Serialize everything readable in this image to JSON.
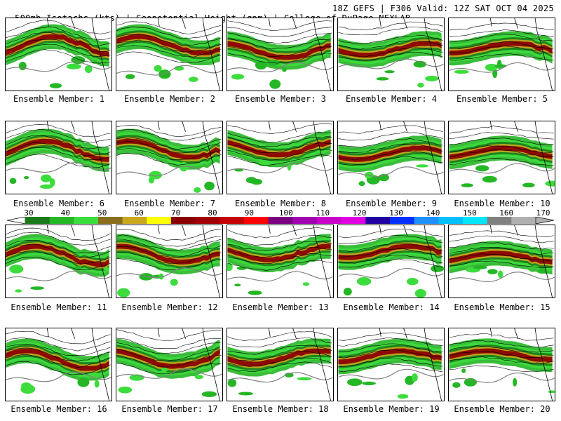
{
  "header": {
    "left_text": "500mb Isotachs (kts) | Geopotential Height (gpm) | College of DuPage NEXLAB",
    "right_text": "18Z GEFS | F306 Valid: 12Z SAT OCT 04 2025"
  },
  "colorbar": {
    "tick_labels": [
      "30",
      "40",
      "50",
      "60",
      "70",
      "80",
      "90",
      "100",
      "110",
      "120",
      "130",
      "140",
      "150",
      "160",
      "170"
    ],
    "colors": [
      "#1a7a1a",
      "#25b625",
      "#3ddc3d",
      "#8a6e1e",
      "#c9a81e",
      "#ffff00",
      "#8b0000",
      "#a00000",
      "#c40000",
      "#ff0000",
      "#7a0080",
      "#a000b0",
      "#c800c8",
      "#e000e0",
      "#2000a0",
      "#0030ff",
      "#1e90ff",
      "#00bfff",
      "#00e5ff",
      "#808080",
      "#b0b0b0"
    ]
  },
  "members": [
    {
      "label": "Ensemble Member: 1"
    },
    {
      "label": "Ensemble Member: 2"
    },
    {
      "label": "Ensemble Member: 3"
    },
    {
      "label": "Ensemble Member: 4"
    },
    {
      "label": "Ensemble Member: 5"
    },
    {
      "label": "Ensemble Member: 6"
    },
    {
      "label": "Ensemble Member: 7"
    },
    {
      "label": "Ensemble Member: 8"
    },
    {
      "label": "Ensemble Member: 9"
    },
    {
      "label": "Ensemble Member: 10"
    },
    {
      "label": "Ensemble Member: 11"
    },
    {
      "label": "Ensemble Member: 12"
    },
    {
      "label": "Ensemble Member: 13"
    },
    {
      "label": "Ensemble Member: 14"
    },
    {
      "label": "Ensemble Member: 15"
    },
    {
      "label": "Ensemble Member: 16"
    },
    {
      "label": "Ensemble Member: 17"
    },
    {
      "label": "Ensemble Member: 18"
    },
    {
      "label": "Ensemble Member: 19"
    },
    {
      "label": "Ensemble Member: 20"
    }
  ]
}
